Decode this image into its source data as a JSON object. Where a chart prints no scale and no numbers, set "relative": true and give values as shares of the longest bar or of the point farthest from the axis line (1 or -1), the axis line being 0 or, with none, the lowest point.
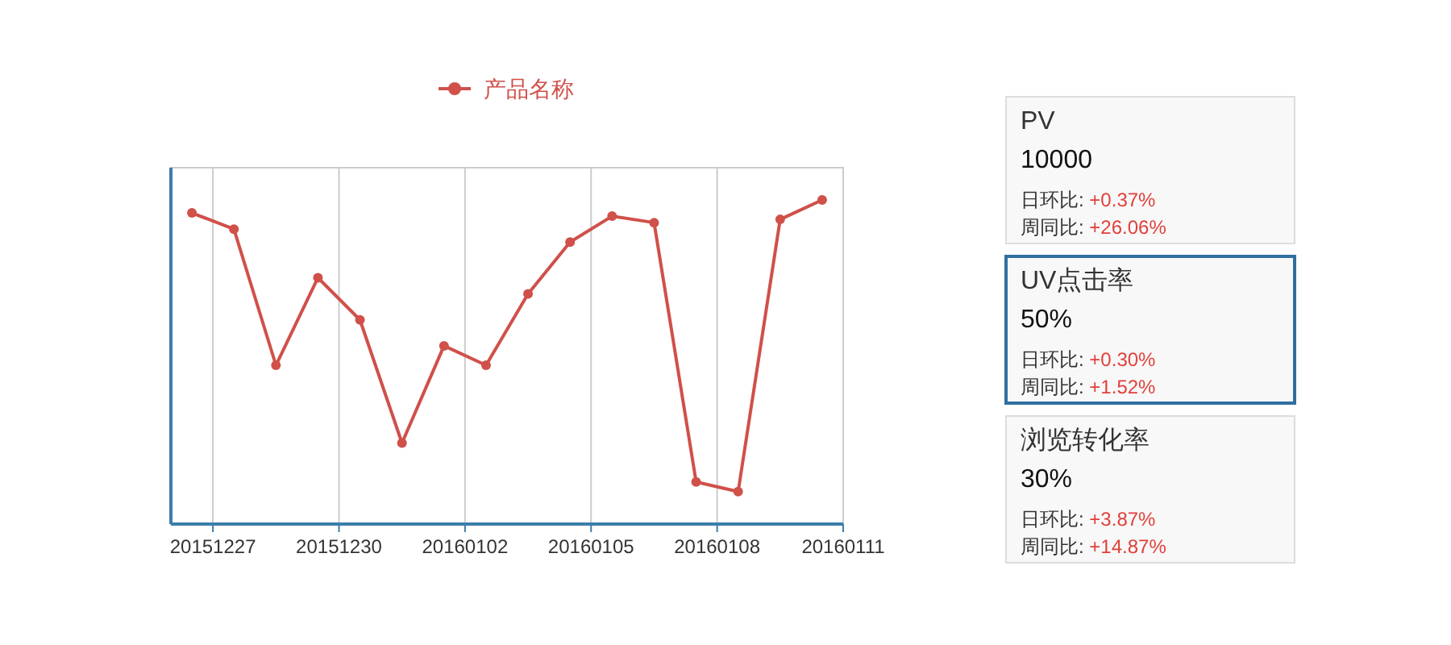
{
  "chart_data": [
    {
      "type": "line",
      "relative": true,
      "x": [
        "2015-12-26T12:00",
        "2015-12-27T12:00",
        "2015-12-28T12:00",
        "2015-12-29T12:00",
        "2015-12-30T12:00",
        "2015-12-31T12:00",
        "2016-01-01T12:00",
        "2016-01-02T12:00",
        "2016-01-03T12:00",
        "2016-01-04T12:00",
        "2016-01-05T12:00",
        "2016-01-06T12:00",
        "2016-01-07T12:00",
        "2016-01-08T12:00",
        "2016-01-09T12:00",
        "2016-01-10T12:00"
      ],
      "series": [
        {
          "name": "产品名称",
          "color": "#d0504a",
          "values": [
            0.96,
            0.91,
            0.49,
            0.76,
            0.63,
            0.25,
            0.55,
            0.49,
            0.71,
            0.87,
            0.95,
            0.93,
            0.13,
            0.1,
            0.94,
            1
          ]
        }
      ],
      "xlim": [
        "2015-12-26",
        "2016-01-11"
      ],
      "xticks": [
        {
          "value": "2015-12-27",
          "label": "20151227"
        },
        {
          "value": "2015-12-30",
          "label": "20151230"
        },
        {
          "value": "2016-01-02",
          "label": "20160102"
        },
        {
          "value": "2016-01-05",
          "label": "20160105"
        },
        {
          "value": "2016-01-08",
          "label": "20160108"
        },
        {
          "value": "2016-01-11",
          "label": "20160111"
        }
      ],
      "grid": "x",
      "legend": "top",
      "marker": "circle",
      "line_style": "solid"
    },
    {
      "type": "other",
      "colors": [
        "#dddddd",
        "#2f6f9f",
        "#dddddd"
      ],
      "annotations": [
        "PV",
        "10000",
        "日环比: ",
        "+0.37%",
        "周同比: ",
        "+26.06%",
        "UV点击率",
        "50%",
        "日环比: ",
        "+0.30%",
        "周同比: ",
        "+1.52%",
        "浏览转化率",
        "30%",
        "日环比: ",
        "+3.87%",
        "周同比: ",
        "+14.87%"
      ]
    }
  ]
}
